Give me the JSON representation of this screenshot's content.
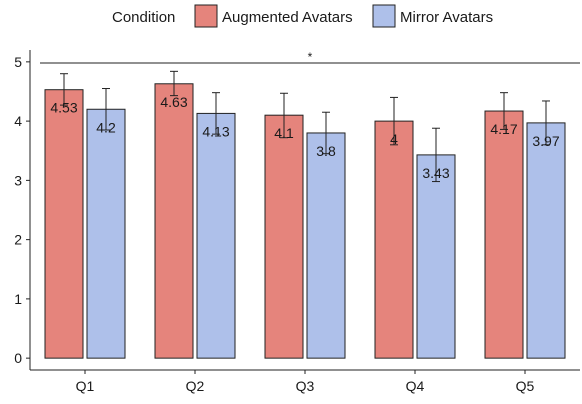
{
  "chart_data": {
    "type": "bar",
    "title": "",
    "xlabel": "",
    "ylabel": "",
    "ylim": [
      -0.2,
      5.2
    ],
    "yticks": [
      0,
      1,
      2,
      3,
      4,
      5
    ],
    "grid": false,
    "legend": {
      "title": "Condition",
      "placement": "top-center"
    },
    "categories": [
      "Q1",
      "Q2",
      "Q3",
      "Q4",
      "Q5"
    ],
    "series": [
      {
        "name": "Augmented Avatars",
        "color": "#e5847c",
        "values": [
          4.53,
          4.63,
          4.1,
          4,
          4.17
        ],
        "labels": [
          "4.53",
          "4.63",
          "4.1",
          "4",
          "4.17"
        ],
        "err_low": [
          4.27,
          4.43,
          3.72,
          3.6,
          3.86
        ],
        "err_high": [
          4.8,
          4.84,
          4.47,
          4.4,
          4.48
        ]
      },
      {
        "name": "Mirror Avatars",
        "color": "#aec0ea",
        "values": [
          4.2,
          4.13,
          3.8,
          3.43,
          3.97
        ],
        "labels": [
          "4.2",
          "4.13",
          "3.8",
          "3.43",
          "3.97"
        ],
        "err_low": [
          3.85,
          3.78,
          3.45,
          2.98,
          3.6
        ],
        "err_high": [
          4.55,
          4.48,
          4.15,
          3.88,
          4.34
        ]
      }
    ],
    "annotations": [
      {
        "text": "*",
        "type": "significance-line",
        "y": 4.98
      }
    ]
  }
}
